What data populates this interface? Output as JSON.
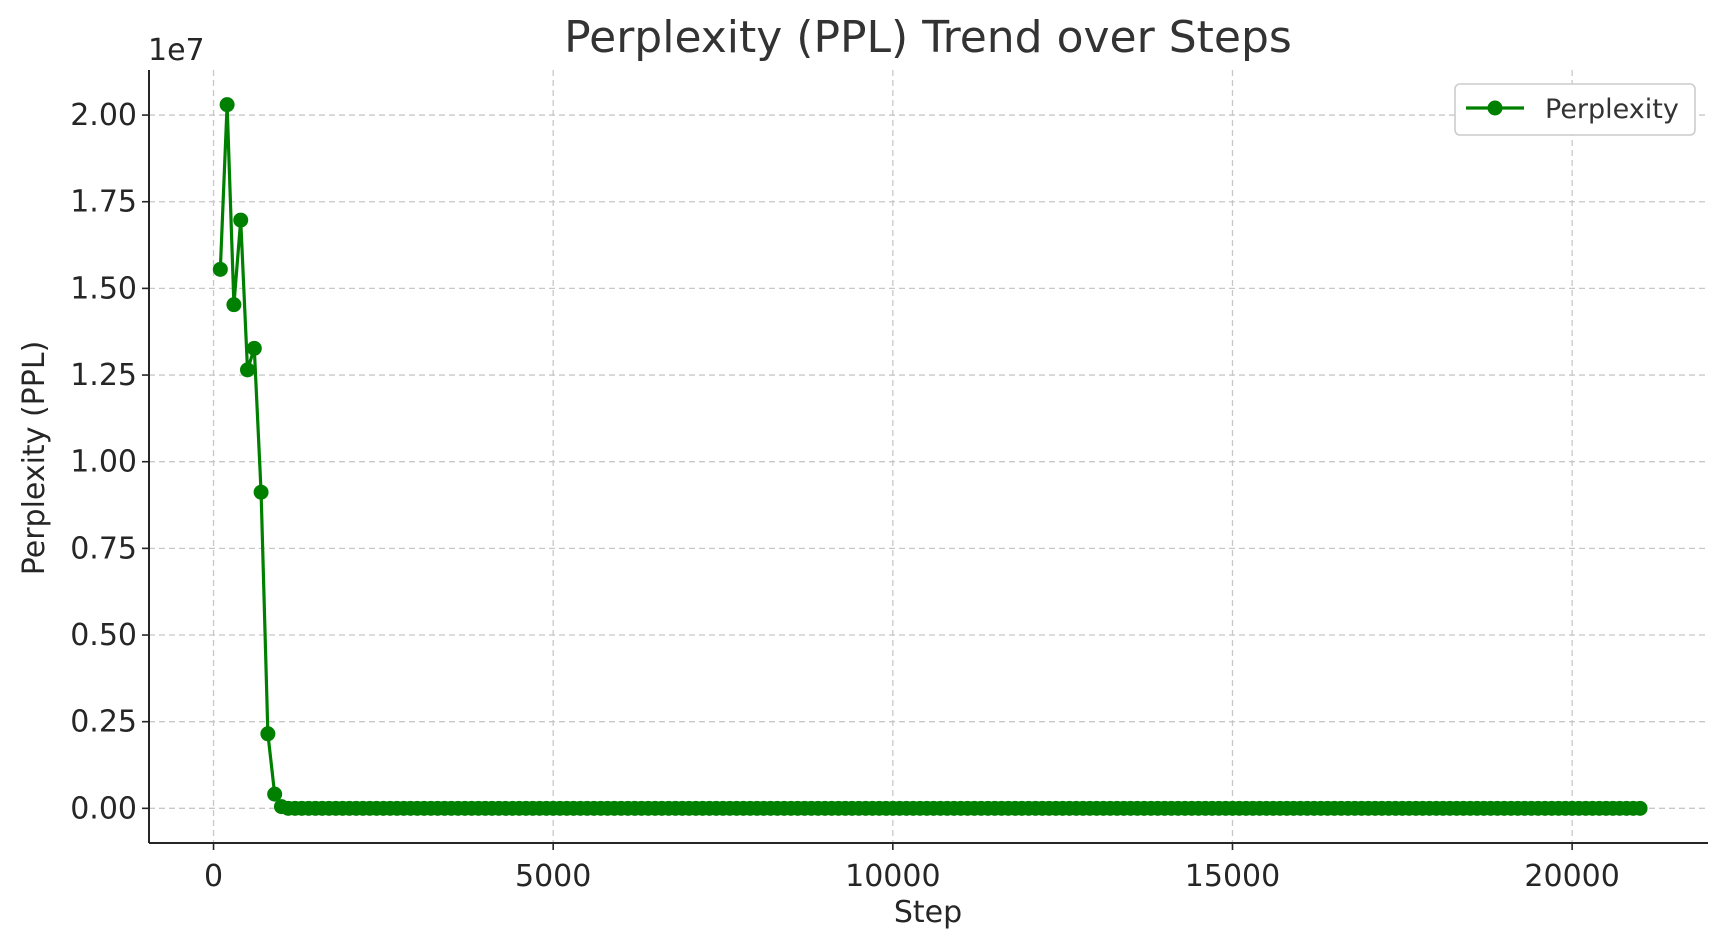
{
  "chart_data": {
    "type": "line",
    "title": "Perplexity (PPL) Trend over Steps",
    "xlabel": "Step",
    "ylabel": "Perplexity (PPL)",
    "y_offset_label": "1e7",
    "xlim": [
      -950,
      22000
    ],
    "ylim": [
      -1000000,
      21300000
    ],
    "x_ticks": [
      0,
      5000,
      10000,
      15000,
      20000
    ],
    "x_tick_labels": [
      "0",
      "5000",
      "10000",
      "15000",
      "20000"
    ],
    "y_ticks": [
      0,
      2500000,
      5000000,
      7500000,
      10000000,
      12500000,
      15000000,
      17500000,
      20000000
    ],
    "y_tick_labels": [
      "0.00",
      "0.25",
      "0.50",
      "0.75",
      "1.00",
      "1.25",
      "1.50",
      "1.75",
      "2.00"
    ],
    "grid": true,
    "legend_position": "top-right",
    "series": [
      {
        "name": "Perplexity",
        "color": "#008000",
        "marker": "circle",
        "x_start": 100,
        "x_step": 100,
        "x_end": 21000,
        "values_head": [
          15550000,
          20300000,
          14530000,
          16970000,
          12650000,
          13270000,
          9120000,
          2150000,
          410000,
          50000
        ],
        "tail_value": 0
      }
    ]
  }
}
